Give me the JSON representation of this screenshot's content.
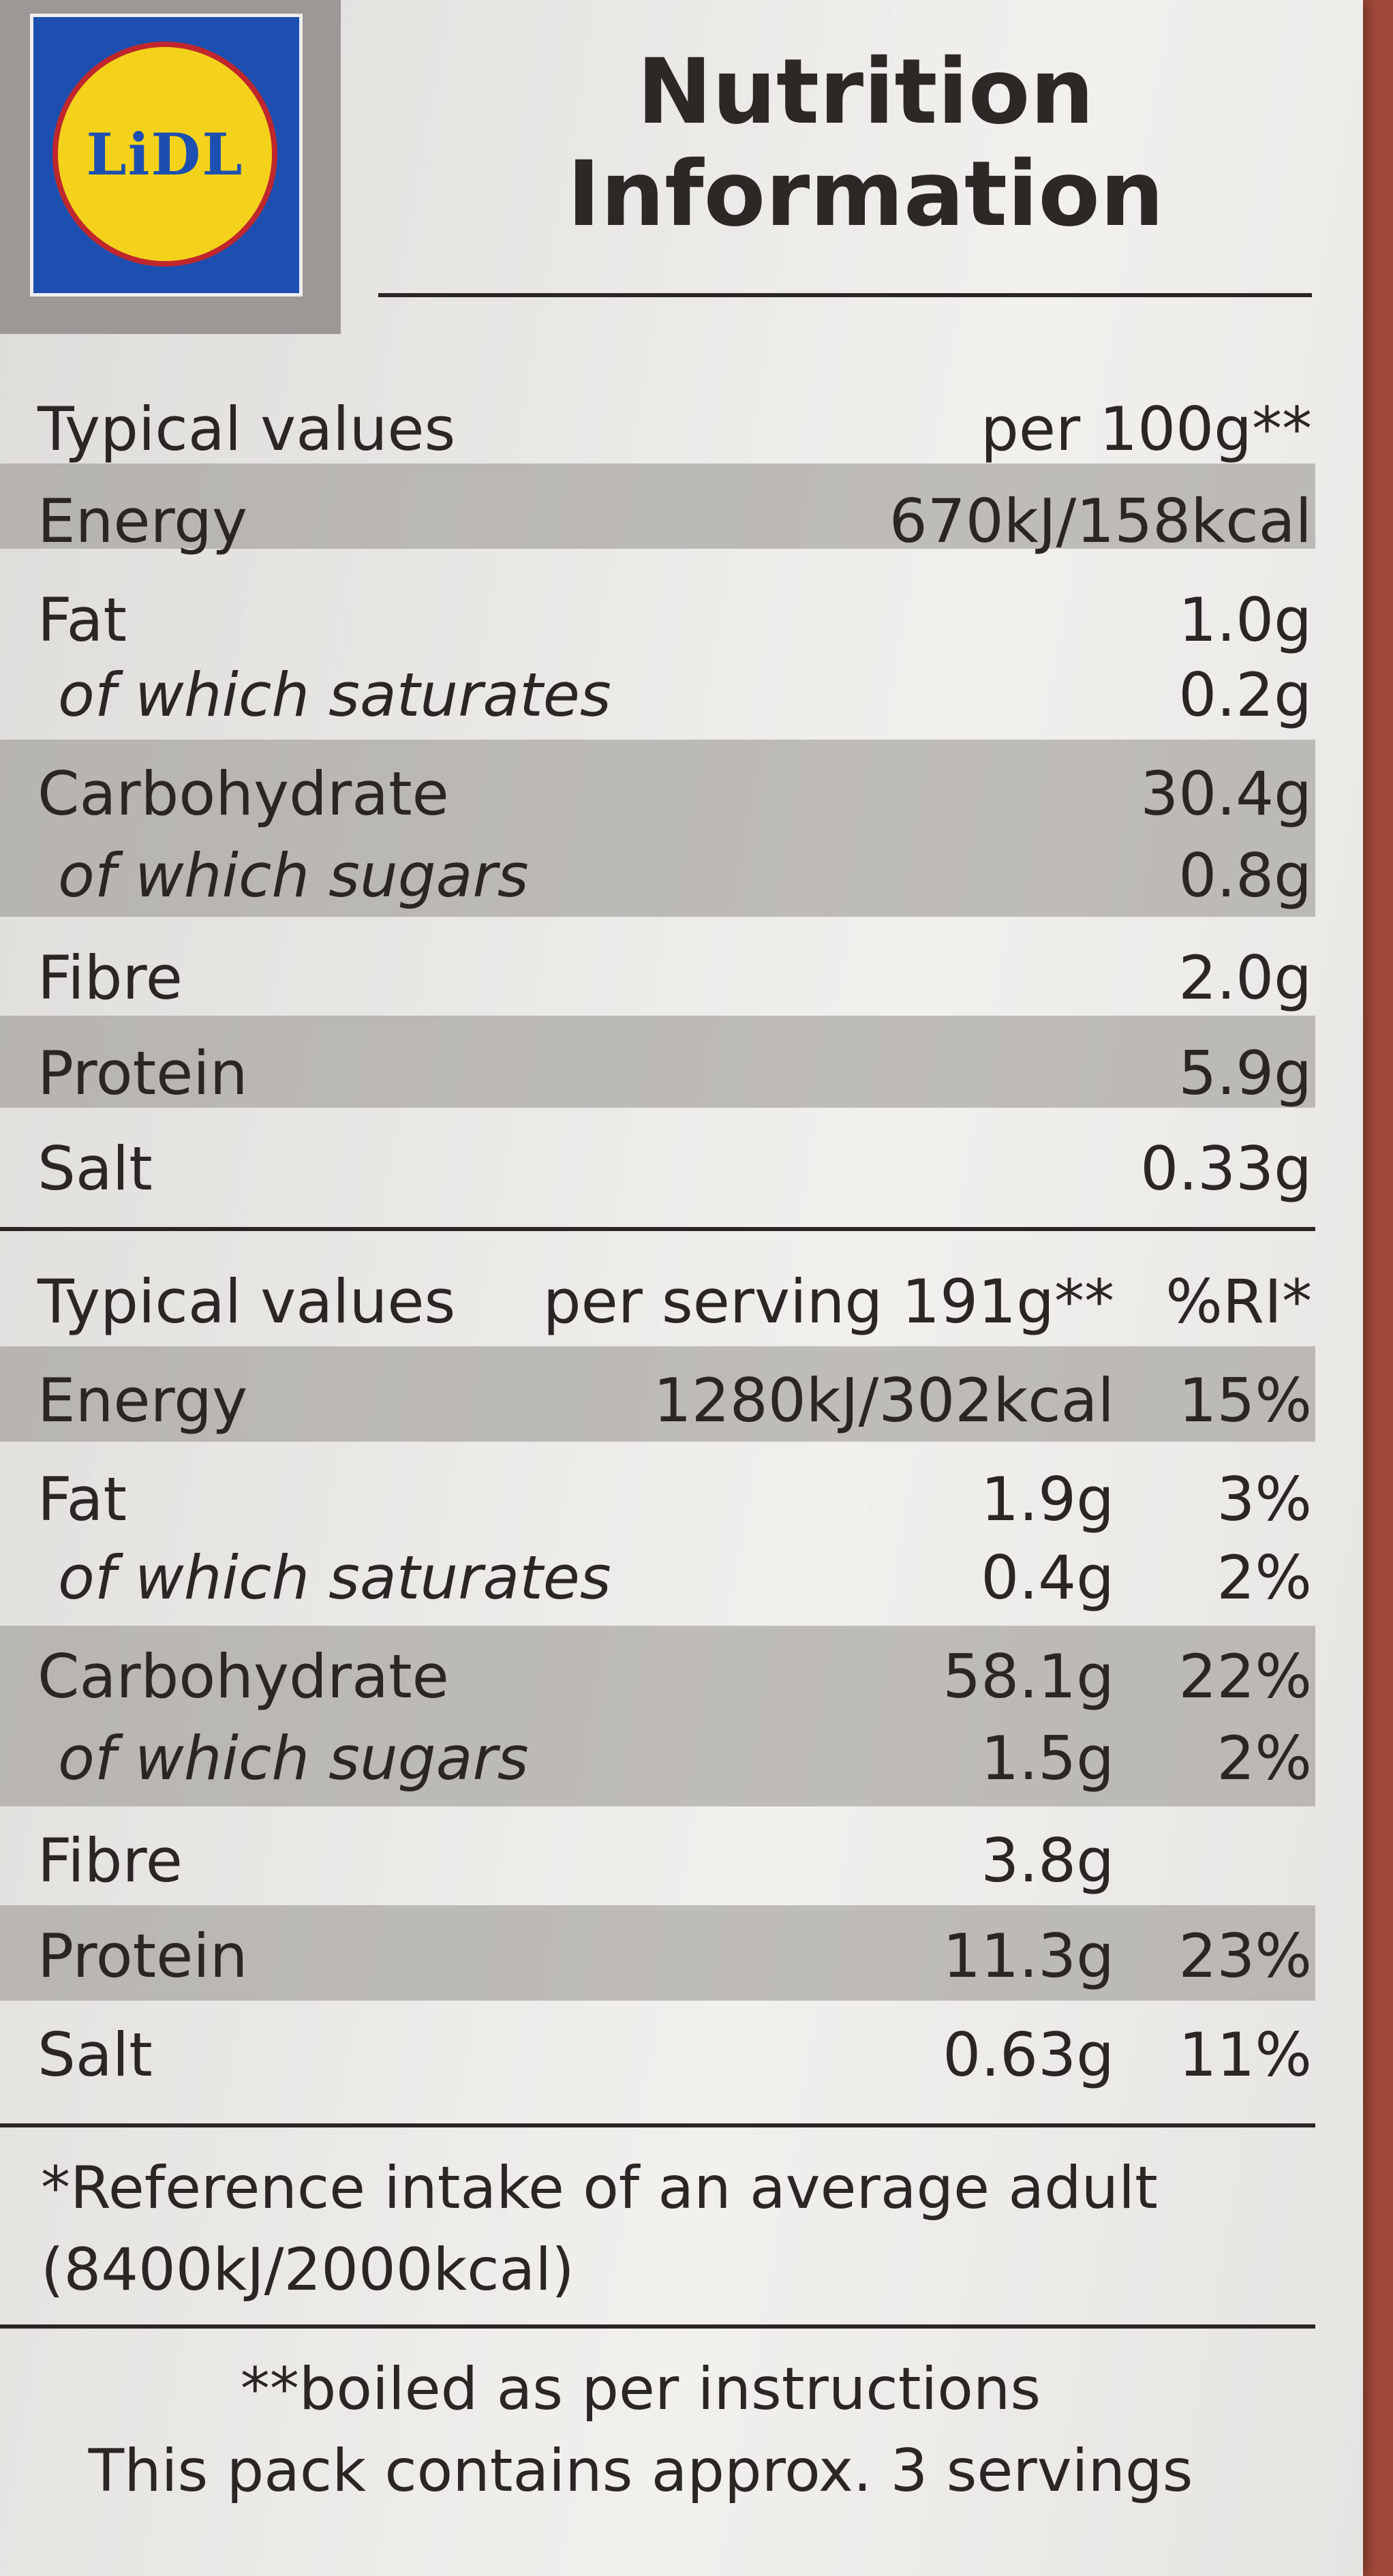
{
  "brand": {
    "logo_text": "LiDL",
    "colors": {
      "blue": "#1d4fb0",
      "yellow": "#f4d21c",
      "red": "#c0272d"
    }
  },
  "title": {
    "line1": "Nutrition",
    "line2": "Information"
  },
  "per100": {
    "header": {
      "label": "Typical values",
      "col1": "per 100g**"
    },
    "rows": [
      {
        "name": "Energy",
        "value": "670kJ/158kcal"
      },
      {
        "name": "Fat",
        "value": "1.0g"
      },
      {
        "name": "of which saturates",
        "value": "0.2g"
      },
      {
        "name": "Carbohydrate",
        "value": "30.4g"
      },
      {
        "name": "of which sugars",
        "value": "0.8g"
      },
      {
        "name": "Fibre",
        "value": "2.0g"
      },
      {
        "name": "Protein",
        "value": "5.9g"
      },
      {
        "name": "Salt",
        "value": "0.33g"
      }
    ]
  },
  "serving": {
    "header": {
      "label": "Typical values",
      "col1": "per serving 191g**",
      "col2": "%RI*"
    },
    "rows": [
      {
        "name": "Energy",
        "value": "1280kJ/302kcal",
        "ri": "15%"
      },
      {
        "name": "Fat",
        "value": "1.9g",
        "ri": "3%"
      },
      {
        "name": "of which saturates",
        "value": "0.4g",
        "ri": "2%"
      },
      {
        "name": "Carbohydrate",
        "value": "58.1g",
        "ri": "22%"
      },
      {
        "name": "of which sugars",
        "value": "1.5g",
        "ri": "2%"
      },
      {
        "name": "Fibre",
        "value": "3.8g",
        "ri": ""
      },
      {
        "name": "Protein",
        "value": "11.3g",
        "ri": "23%"
      },
      {
        "name": "Salt",
        "value": "0.63g",
        "ri": "11%"
      }
    ]
  },
  "footnotes": {
    "ri_line1": "*Reference intake of an average adult",
    "ri_line2": "(8400kJ/2000kcal)",
    "boiled": "**boiled as per instructions",
    "servings": "This pack contains approx. 3 servings"
  }
}
